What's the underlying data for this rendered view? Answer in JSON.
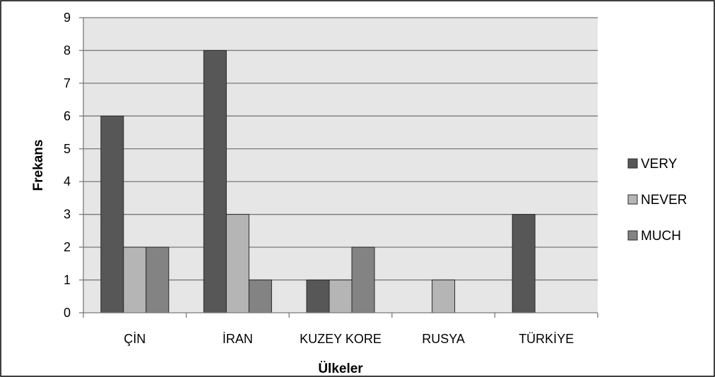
{
  "chart_data": {
    "type": "bar",
    "title": "",
    "xlabel": "Ülkeler",
    "ylabel": "Frekans",
    "categories": [
      "ÇİN",
      "İRAN",
      "KUZEY KORE",
      "RUSYA",
      "TÜRKİYE"
    ],
    "series": [
      {
        "name": "VERY",
        "color": "#575757",
        "values": [
          6,
          8,
          1,
          null,
          3
        ]
      },
      {
        "name": "NEVER",
        "color": "#b5b5b5",
        "values": [
          2,
          3,
          1,
          1,
          null
        ]
      },
      {
        "name": "MUCH",
        "color": "#838383",
        "values": [
          2,
          1,
          2,
          null,
          null
        ]
      }
    ],
    "ylim": [
      0,
      9
    ],
    "yticks": [
      0,
      1,
      2,
      3,
      4,
      5,
      6,
      7,
      8,
      9
    ],
    "grid": true,
    "legend_position": "right",
    "plot_background": "#e6e6e6"
  }
}
